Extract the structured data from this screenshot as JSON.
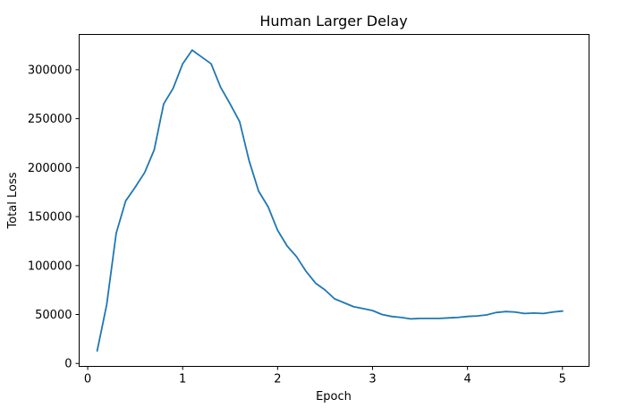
{
  "chart_data": {
    "type": "line",
    "title": "Human Larger Delay",
    "xlabel": "Epoch",
    "ylabel": "Total Loss",
    "xlim": [
      -0.09,
      5.28
    ],
    "ylim": [
      -3000,
      336000
    ],
    "xticks": [
      0,
      1,
      2,
      3,
      4,
      5
    ],
    "yticks": [
      0,
      50000,
      100000,
      150000,
      200000,
      250000,
      300000
    ],
    "grid": false,
    "legend": "none",
    "series": [
      {
        "color": "#1f77b4",
        "x": [
          0.1,
          0.2,
          0.3,
          0.4,
          0.5,
          0.6,
          0.7,
          0.8,
          0.9,
          1.0,
          1.1,
          1.2,
          1.3,
          1.4,
          1.5,
          1.6,
          1.7,
          1.8,
          1.9,
          2.0,
          2.1,
          2.2,
          2.3,
          2.4,
          2.5,
          2.6,
          2.7,
          2.8,
          2.9,
          3.0,
          3.1,
          3.2,
          3.3,
          3.4,
          3.5,
          3.6,
          3.7,
          3.8,
          3.9,
          4.0,
          4.1,
          4.2,
          4.3,
          4.4,
          4.5,
          4.6,
          4.7,
          4.8,
          4.9,
          5.0
        ],
        "y": [
          13000,
          60000,
          133000,
          166000,
          180000,
          195000,
          218000,
          265000,
          281000,
          306000,
          320000,
          313000,
          306000,
          282000,
          265000,
          247000,
          207000,
          176000,
          160000,
          136000,
          120000,
          109000,
          94000,
          82000,
          75000,
          66000,
          62000,
          58000,
          56000,
          54000,
          50000,
          48000,
          47000,
          45500,
          46000,
          46000,
          46000,
          46500,
          47000,
          48000,
          48500,
          49500,
          52000,
          53000,
          52500,
          51000,
          51500,
          51000,
          52500,
          53500
        ]
      }
    ]
  }
}
